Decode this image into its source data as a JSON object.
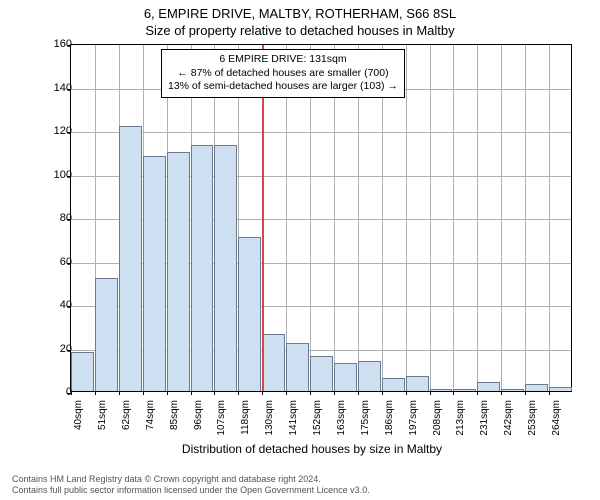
{
  "title_main": "6, EMPIRE DRIVE, MALTBY, ROTHERHAM, S66 8SL",
  "title_sub": "Size of property relative to detached houses in Maltby",
  "chart": {
    "type": "histogram",
    "ylabel": "Number of detached properties",
    "xlabel": "Distribution of detached houses by size in Maltby",
    "ylim": [
      0,
      160
    ],
    "ytick_step": 20,
    "xtick_labels": [
      "40sqm",
      "51sqm",
      "62sqm",
      "74sqm",
      "85sqm",
      "96sqm",
      "107sqm",
      "118sqm",
      "130sqm",
      "141sqm",
      "152sqm",
      "163sqm",
      "175sqm",
      "186sqm",
      "197sqm",
      "208sqm",
      "213sqm",
      "231sqm",
      "242sqm",
      "253sqm",
      "264sqm"
    ],
    "bars": [
      18,
      52,
      122,
      108,
      110,
      113,
      113,
      71,
      26,
      22,
      16,
      13,
      14,
      6,
      7,
      1,
      1,
      4,
      1,
      3,
      2
    ],
    "bar_fill": "#cedff2",
    "bar_stroke": "#6b7a8f",
    "grid_color": "#b0b0b0",
    "background_color": "#ffffff",
    "refline_x_index": 8,
    "refline_color": "#d84545",
    "axis_fontsize": 11,
    "label_fontsize": 12
  },
  "annotation": {
    "line1": "6 EMPIRE DRIVE: 131sqm",
    "line2": "← 87% of detached houses are smaller (700)",
    "line3": "13% of semi-detached houses are larger (103) →"
  },
  "footer_line1": "Contains HM Land Registry data © Crown copyright and database right 2024.",
  "footer_line2": "Contains full public sector information licensed under the Open Government Licence v3.0."
}
